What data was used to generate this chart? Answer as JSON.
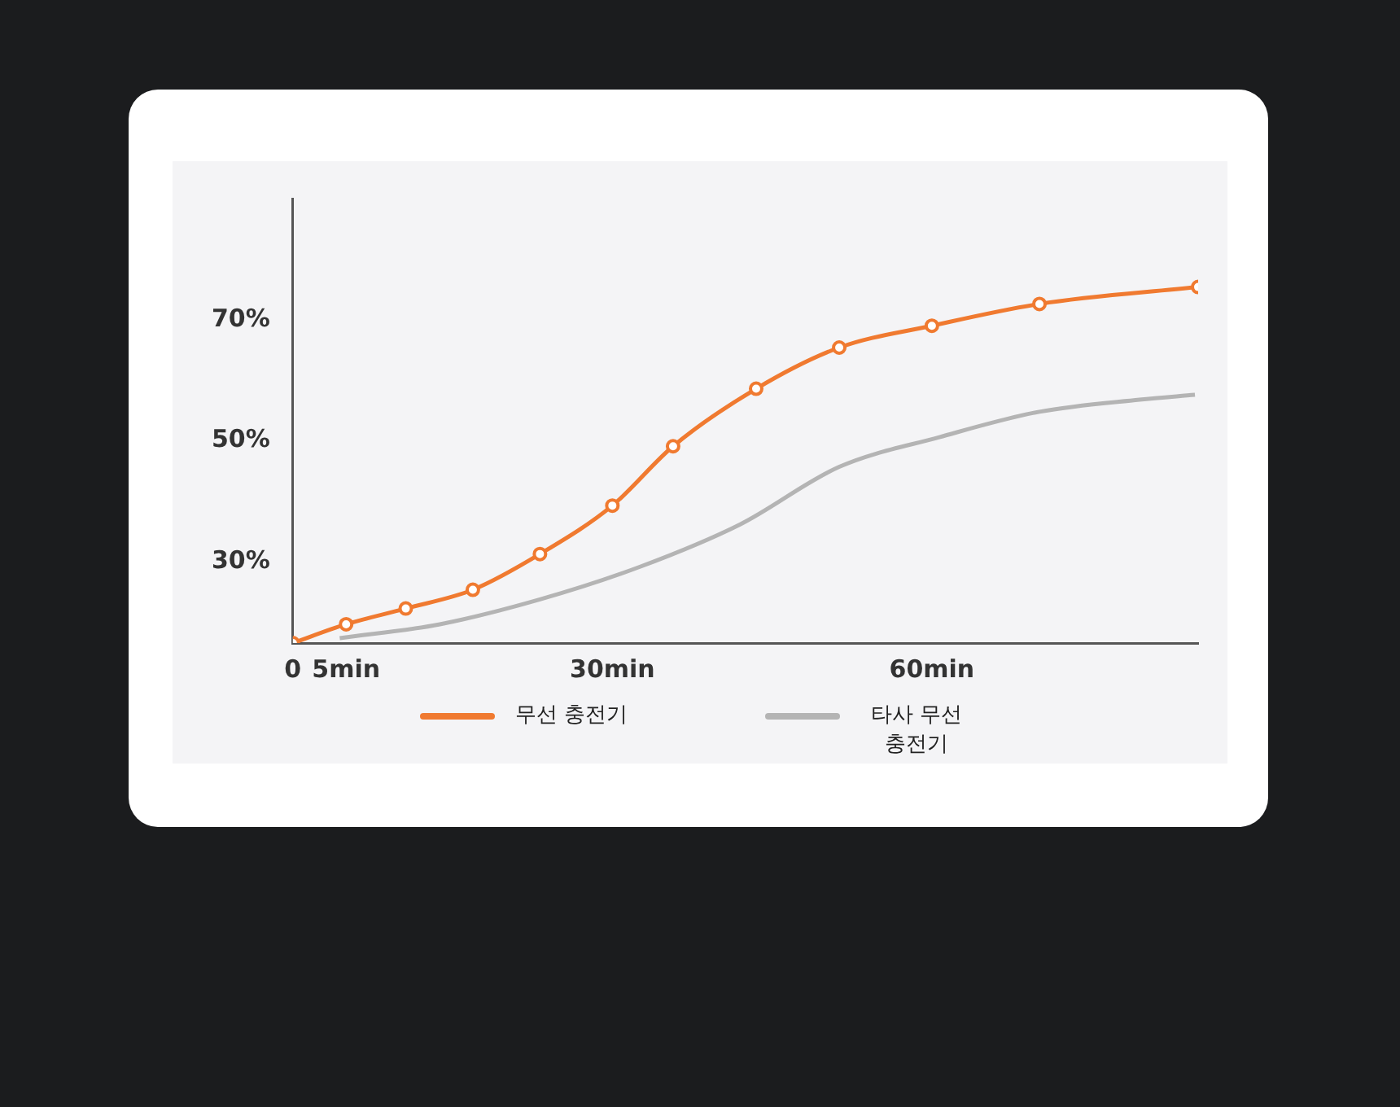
{
  "chart_data": {
    "type": "line",
    "xlim": [
      0,
      85
    ],
    "xticks": [
      0,
      {
        "value": 5,
        "label": "5min"
      },
      {
        "value": 30,
        "label": "30min"
      },
      {
        "value": 60,
        "label": "60min"
      }
    ],
    "ylim": [
      16.6,
      90
    ],
    "yticks": [
      {
        "value": 30,
        "label": "30%"
      },
      {
        "value": 50,
        "label": "50%"
      },
      {
        "value": 70,
        "label": "70%"
      }
    ],
    "grid": false,
    "legend": "bottom",
    "series": [
      {
        "name": "무선 충전기",
        "color": "#f07a30",
        "marker": "circle",
        "x": [
          0,
          5,
          10.6,
          16.9,
          23.2,
          30,
          35.7,
          43.5,
          51.3,
          60,
          70.1,
          85
        ],
        "values": [
          16.6,
          19.7,
          22.3,
          25.4,
          31.3,
          39.3,
          49.1,
          58.6,
          65.4,
          69,
          72.6,
          75.4
        ]
      },
      {
        "name": "타사 무선 충전기",
        "color": "#b4b4b4",
        "marker": "none",
        "x": [
          4.4,
          13.8,
          23.2,
          32.6,
          42,
          51.3,
          60.7,
          70.1,
          79.5,
          84.7
        ],
        "values": [
          17.4,
          19.7,
          23.8,
          29.2,
          36.2,
          45.7,
          50.6,
          54.8,
          56.8,
          57.6
        ]
      }
    ]
  }
}
